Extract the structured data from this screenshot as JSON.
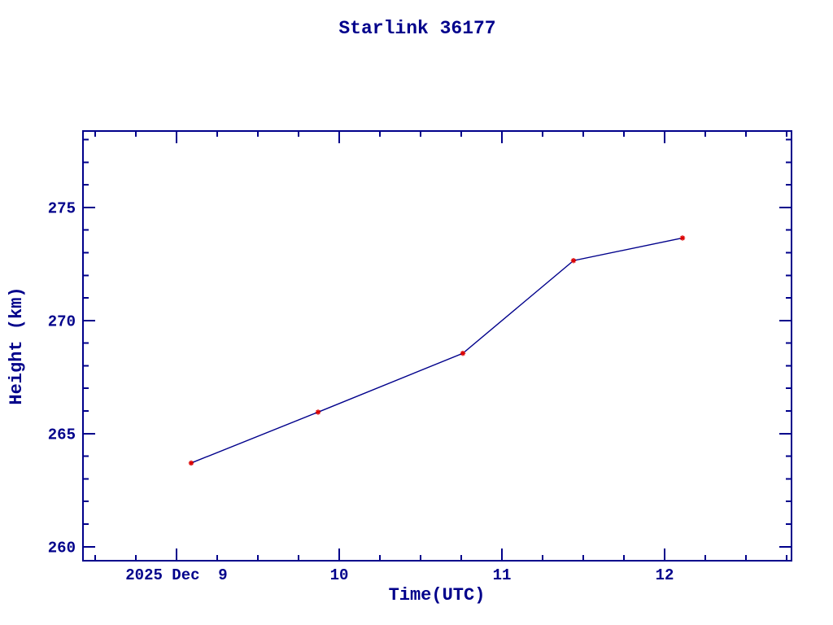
{
  "chart_data": {
    "type": "line",
    "title": "Starlink 36177",
    "xlabel": "Time(UTC)",
    "ylabel": "Height (km)",
    "x_unit": "day of December 2025, UTC",
    "xlim": [
      8.425,
      12.78
    ],
    "ylim": [
      259.38,
      278.38
    ],
    "grid": false,
    "legend": "none",
    "background_color": "#FFFFFF",
    "axis_color": "#00008B",
    "text_color": "#00008B",
    "x_major_ticks": [
      {
        "value": 9,
        "label": "2025 Dec  9"
      },
      {
        "value": 10,
        "label": "10"
      },
      {
        "value": 11,
        "label": "11"
      },
      {
        "value": 12,
        "label": "12"
      }
    ],
    "x_minor_step": 0.25,
    "y_major_ticks": [
      {
        "value": 260,
        "label": "260"
      },
      {
        "value": 265,
        "label": "265"
      },
      {
        "value": 270,
        "label": "270"
      },
      {
        "value": 275,
        "label": "275"
      }
    ],
    "y_minor_step": 1,
    "series": [
      {
        "name": "height",
        "line_color": "#00008B",
        "marker": "asterisk",
        "marker_color": "#DC0000",
        "x": [
          9.09,
          9.87,
          10.76,
          11.44,
          12.11
        ],
        "y": [
          263.7,
          265.95,
          268.55,
          272.65,
          273.65
        ]
      }
    ]
  }
}
